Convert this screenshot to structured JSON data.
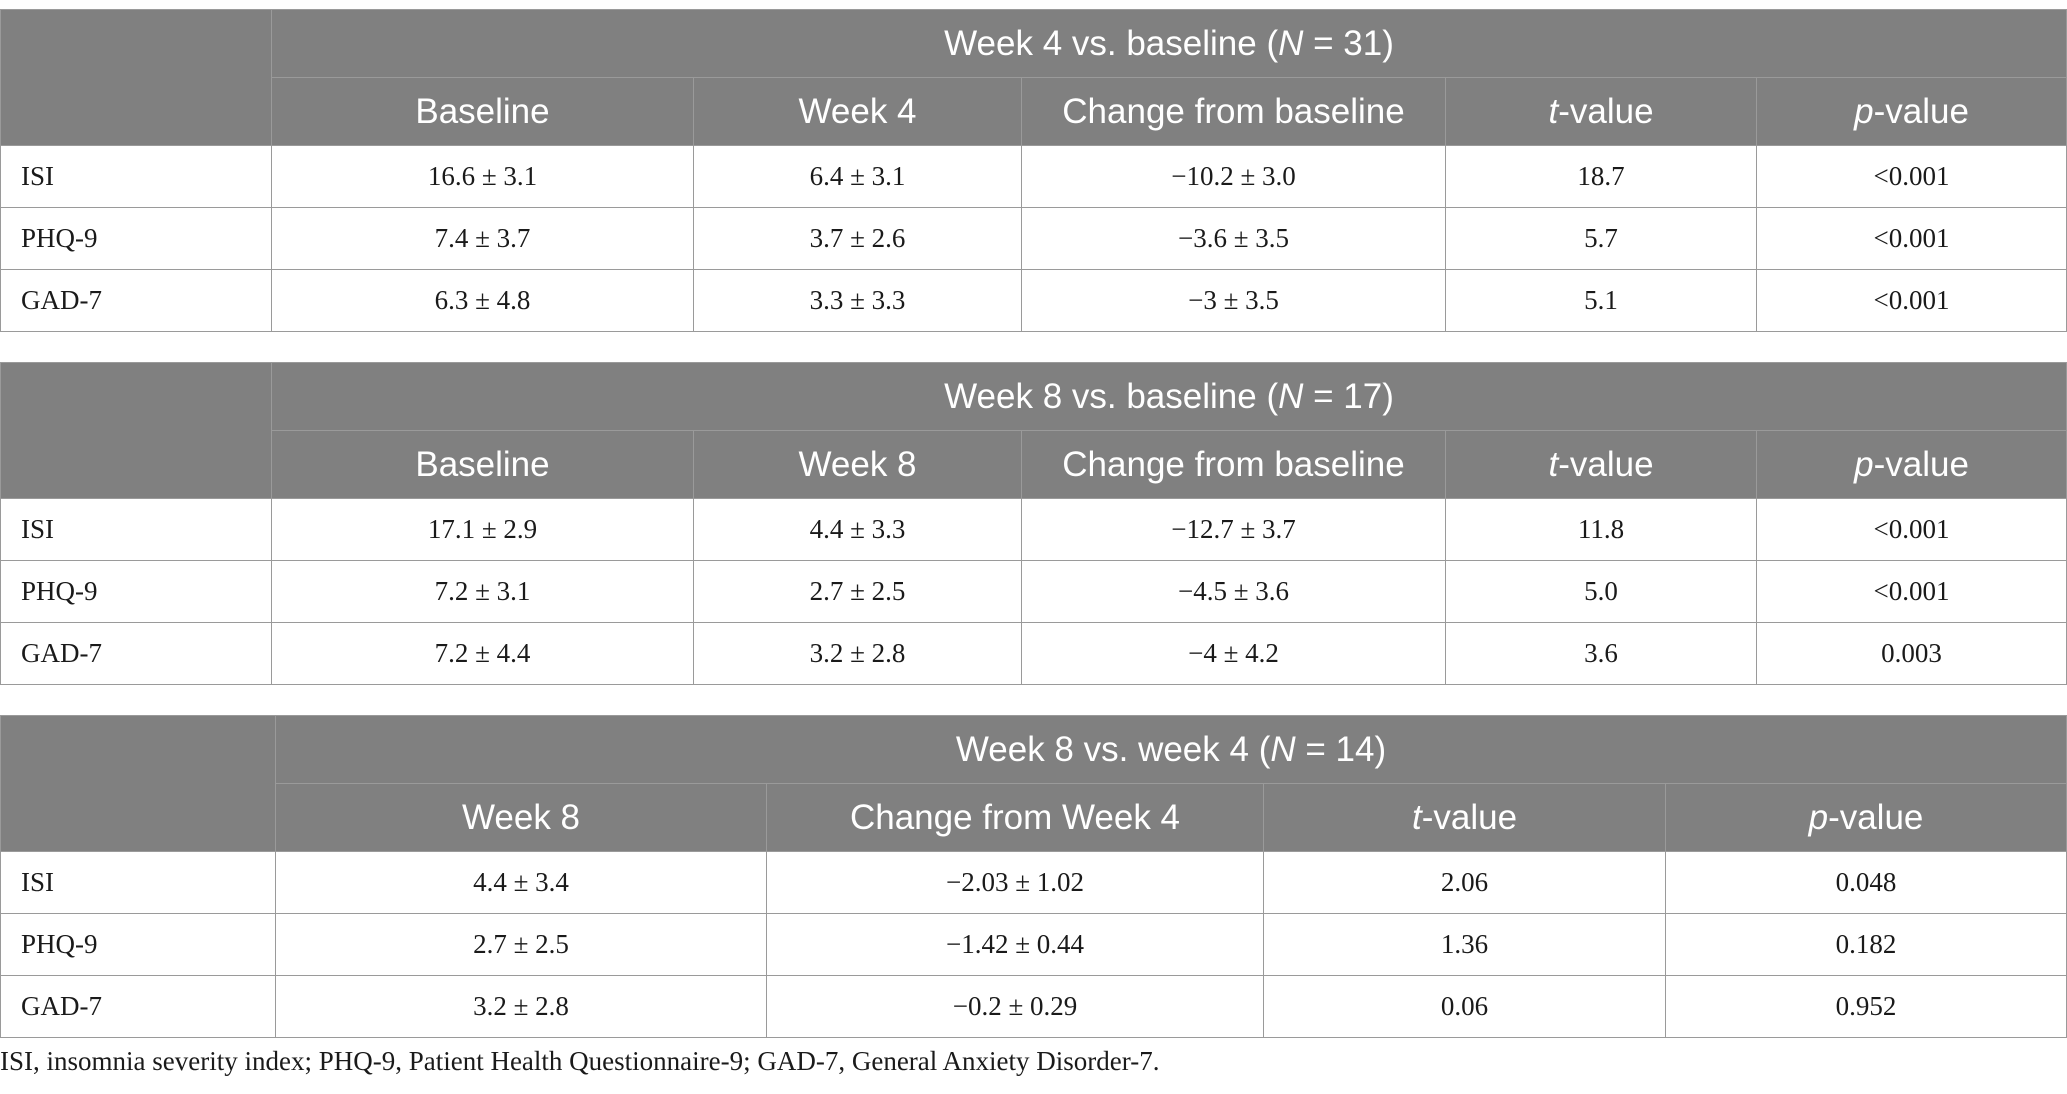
{
  "tables": [
    {
      "title_parts": [
        "Week 4 vs. baseline (",
        "N",
        " = 31)"
      ],
      "columns": [
        {
          "pre": "",
          "it": "",
          "post": "Baseline"
        },
        {
          "pre": "",
          "it": "",
          "post": "Week 4"
        },
        {
          "pre": "",
          "it": "",
          "post": "Change from baseline"
        },
        {
          "pre": "",
          "it": "t",
          "post": "-value"
        },
        {
          "pre": "",
          "it": "p",
          "post": "-value"
        }
      ],
      "rows": [
        {
          "label": "ISI",
          "cells": [
            "16.6 ± 3.1",
            "6.4 ± 3.1",
            "−10.2 ± 3.0",
            "18.7",
            "<0.001"
          ]
        },
        {
          "label": "PHQ-9",
          "cells": [
            "7.4 ± 3.7",
            "3.7 ± 2.6",
            "−3.6 ± 3.5",
            "5.7",
            "<0.001"
          ]
        },
        {
          "label": "GAD-7",
          "cells": [
            "6.3 ± 4.8",
            "3.3 ± 3.3",
            "−3 ± 3.5",
            "5.1",
            "<0.001"
          ]
        }
      ]
    },
    {
      "title_parts": [
        "Week 8 vs. baseline (",
        "N",
        " = 17)"
      ],
      "columns": [
        {
          "pre": "",
          "it": "",
          "post": "Baseline"
        },
        {
          "pre": "",
          "it": "",
          "post": "Week 8"
        },
        {
          "pre": "",
          "it": "",
          "post": "Change from baseline"
        },
        {
          "pre": "",
          "it": "t",
          "post": "-value"
        },
        {
          "pre": "",
          "it": "p",
          "post": "-value"
        }
      ],
      "rows": [
        {
          "label": "ISI",
          "cells": [
            "17.1 ± 2.9",
            "4.4 ± 3.3",
            "−12.7 ± 3.7",
            "11.8",
            "<0.001"
          ]
        },
        {
          "label": "PHQ-9",
          "cells": [
            "7.2 ± 3.1",
            "2.7 ± 2.5",
            "−4.5 ± 3.6",
            "5.0",
            "<0.001"
          ]
        },
        {
          "label": "GAD-7",
          "cells": [
            "7.2 ± 4.4",
            "3.2 ± 2.8",
            "−4 ± 4.2",
            "3.6",
            "0.003"
          ]
        }
      ]
    },
    {
      "title_parts": [
        "Week 8 vs. week 4 (",
        "N",
        " = 14)"
      ],
      "columns": [
        {
          "pre": "",
          "it": "",
          "post": "Week 8"
        },
        {
          "pre": "",
          "it": "",
          "post": "Change from Week 4"
        },
        {
          "pre": "",
          "it": "t",
          "post": "-value"
        },
        {
          "pre": "",
          "it": "p",
          "post": "-value"
        }
      ],
      "rows": [
        {
          "label": "ISI",
          "cells": [
            "4.4 ± 3.4",
            "−2.03 ± 1.02",
            "2.06",
            "0.048"
          ]
        },
        {
          "label": "PHQ-9",
          "cells": [
            "2.7 ± 2.5",
            "−1.42 ± 0.44",
            "1.36",
            "0.182"
          ]
        },
        {
          "label": "GAD-7",
          "cells": [
            "3.2 ± 2.8",
            "−0.2 ± 0.29",
            "0.06",
            "0.952"
          ]
        }
      ]
    }
  ],
  "footnote": "ISI, insomnia severity index; PHQ-9, Patient Health Questionnaire-9; GAD-7, General Anxiety Disorder-7.",
  "colors": {
    "header_bg": "#808080",
    "header_text": "#ffffff",
    "border": "#9a9a9a"
  }
}
